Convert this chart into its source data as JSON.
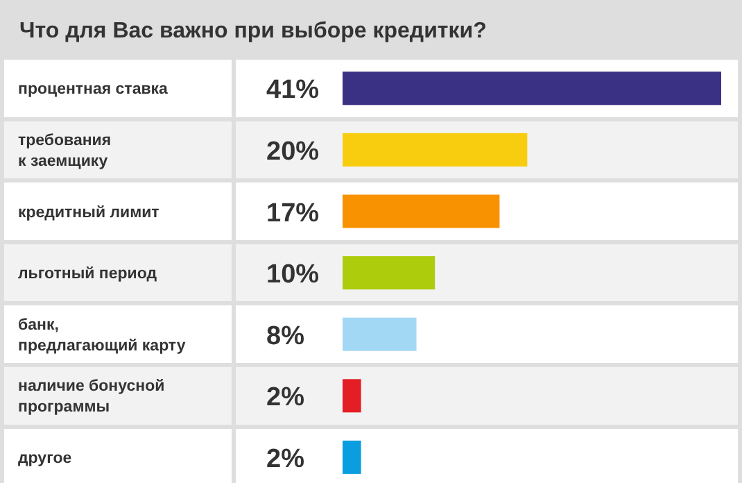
{
  "chart_data": {
    "type": "bar",
    "orientation": "horizontal",
    "title": "Что для Вас важно при выборе кредитки?",
    "categories": [
      "процентная ставка",
      "требования\nк заемщику",
      "кредитный лимит",
      "льготный период",
      "банк,\nпредлагающий карту",
      "наличие бонусной\nпрограммы",
      "другое"
    ],
    "values": [
      41,
      20,
      17,
      10,
      8,
      2,
      2
    ],
    "colors": [
      "#3a3185",
      "#f8cd0f",
      "#f89200",
      "#accc0c",
      "#a3d8f5",
      "#e31e25",
      "#0a9de0"
    ],
    "value_labels": [
      "41%",
      "20%",
      "17%",
      "10%",
      "8%",
      "2%",
      "2%"
    ]
  }
}
